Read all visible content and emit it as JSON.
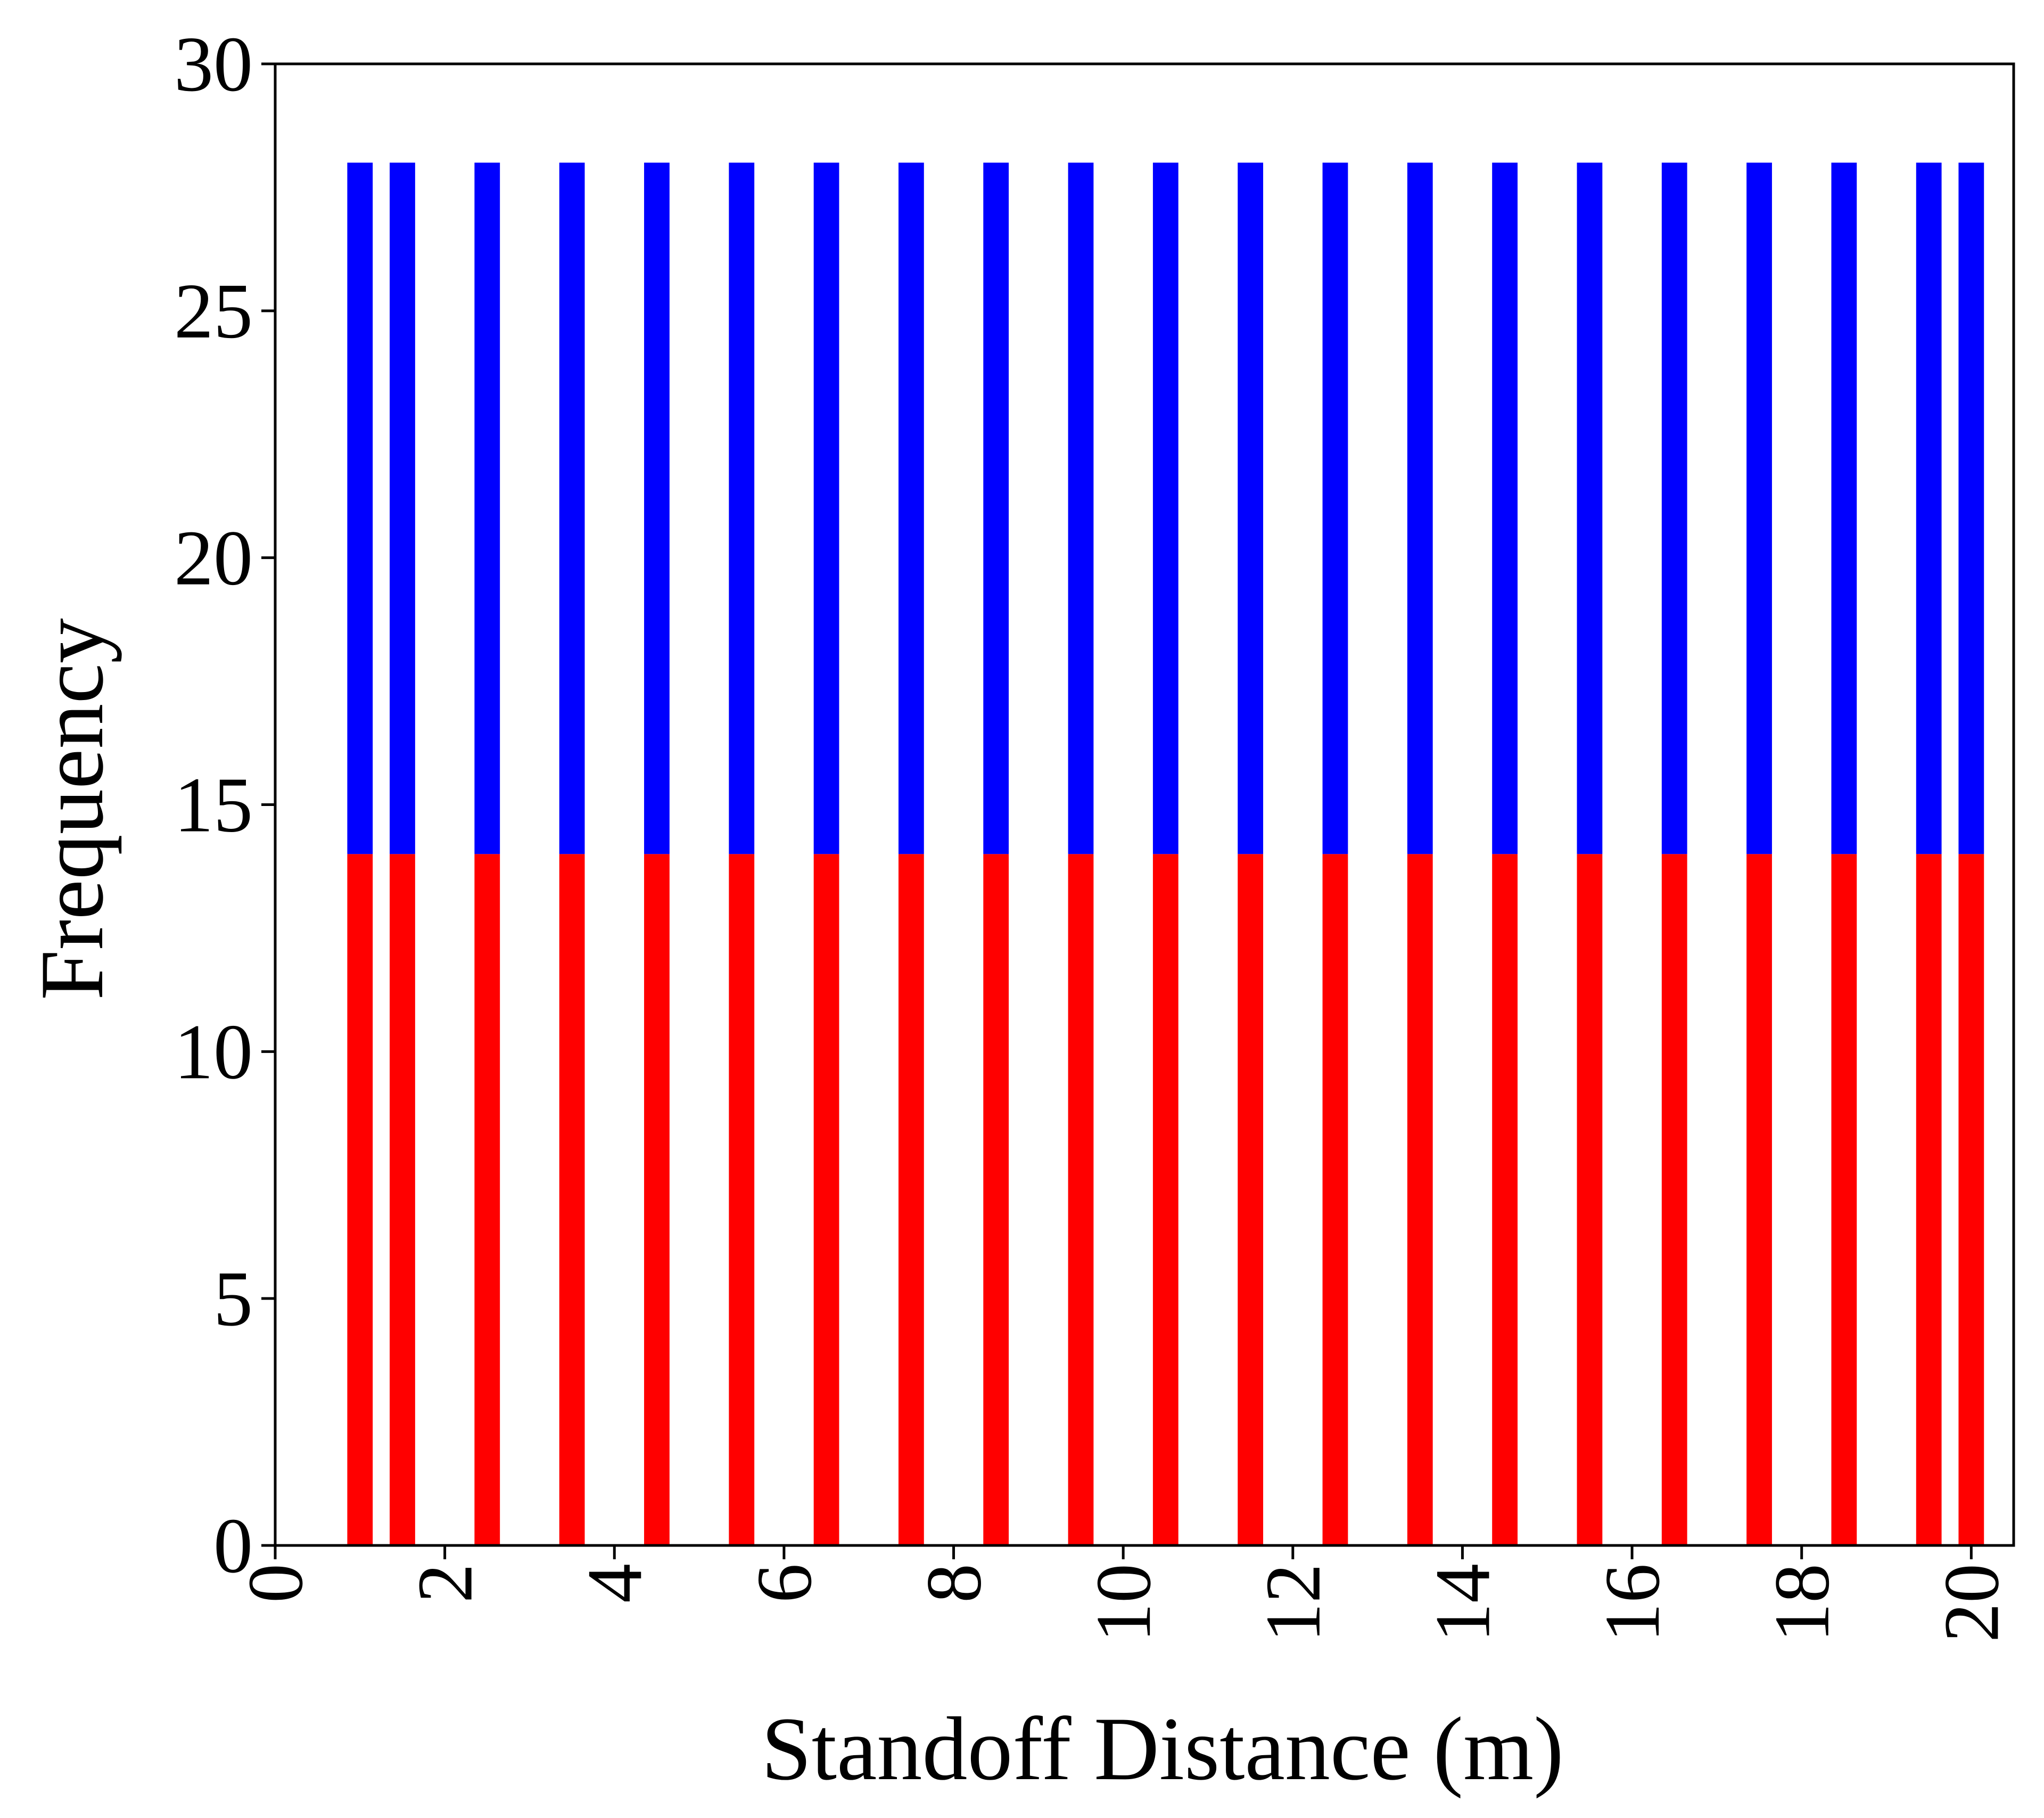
{
  "chart_data": {
    "type": "bar",
    "stacked": true,
    "xlabel": "Standoff Distance (m)",
    "ylabel": "Frequency",
    "xlim": [
      0,
      20.5
    ],
    "ylim": [
      0,
      30
    ],
    "x_ticks": [
      "0",
      "2",
      "4",
      "6",
      "8",
      "10",
      "12",
      "14",
      "16",
      "18",
      "20"
    ],
    "y_ticks": [
      "0",
      "5",
      "10",
      "15",
      "20",
      "25",
      "30"
    ],
    "bar_width": 0.3,
    "x": [
      1.0,
      1.5,
      2.5,
      3.5,
      4.5,
      5.5,
      6.5,
      7.5,
      8.5,
      9.5,
      10.5,
      11.5,
      12.5,
      13.5,
      14.5,
      15.5,
      16.5,
      17.5,
      18.5,
      19.5,
      20.0
    ],
    "series": [
      {
        "color": "#ff0000",
        "values": [
          14,
          14,
          14,
          14,
          14,
          14,
          14,
          14,
          14,
          14,
          14,
          14,
          14,
          14,
          14,
          14,
          14,
          14,
          14,
          14,
          14
        ]
      },
      {
        "color": "#0000ff",
        "values": [
          14,
          14,
          14,
          14,
          14,
          14,
          14,
          14,
          14,
          14,
          14,
          14,
          14,
          14,
          14,
          14,
          14,
          14,
          14,
          14,
          14
        ]
      }
    ],
    "grid": false,
    "legend": false
  }
}
